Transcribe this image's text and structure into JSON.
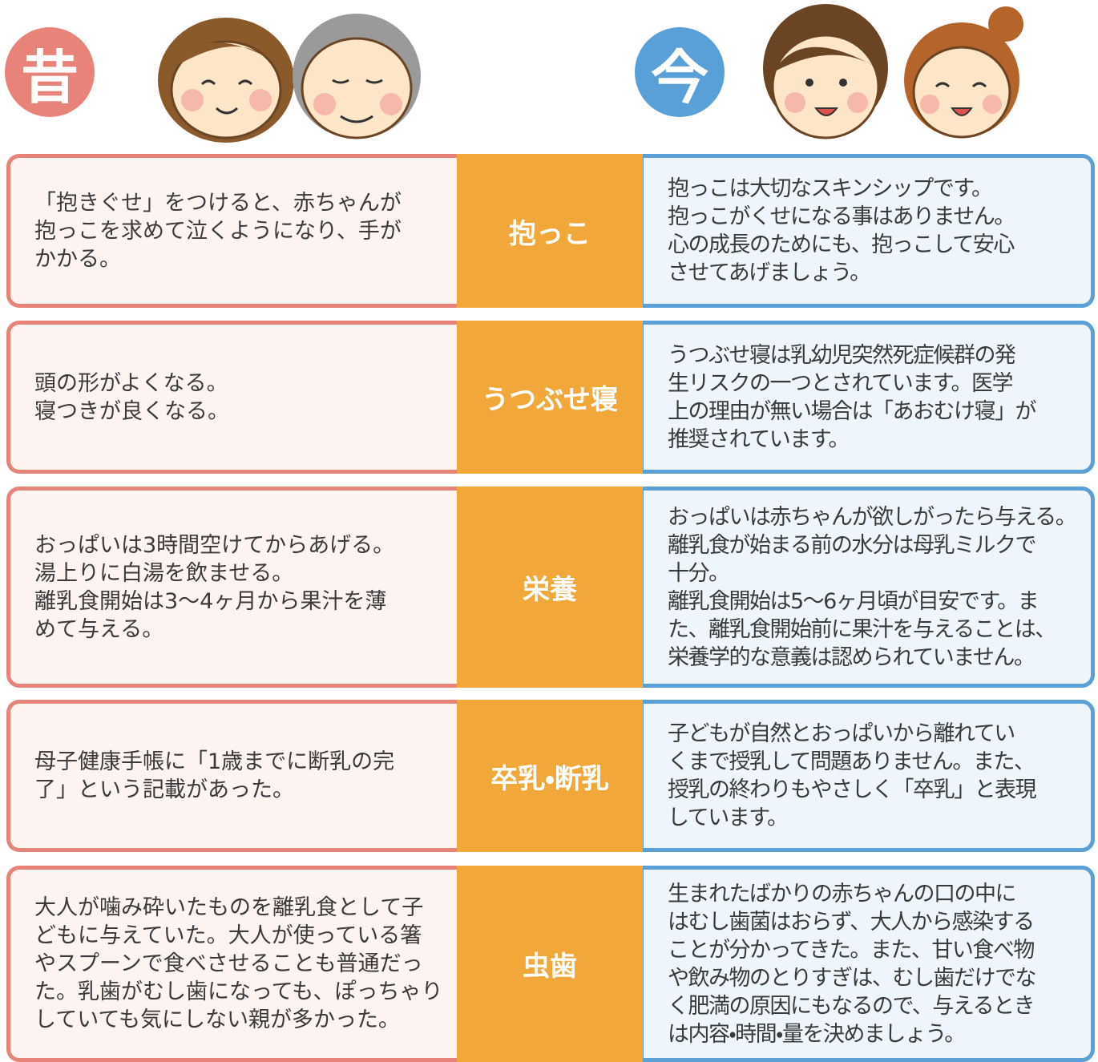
{
  "header": {
    "old_badge": "昔",
    "new_badge": "今"
  },
  "rows": [
    {
      "topic": "抱っこ",
      "old": [
        "「抱きぐせ」をつけると、赤ちゃんが",
        "抱っこを求めて泣くようになり、手が",
        "かかる。"
      ],
      "new": [
        "抱っこは大切なスキンシップです。",
        "抱っこがくせになる事はありません。",
        "心の成長のためにも、抱っこして安心",
        "させてあげましょう。"
      ]
    },
    {
      "topic": "うつぶせ寝",
      "old": [
        "頭の形がよくなる。",
        "寝つきが良くなる。"
      ],
      "new": [
        "うつぶせ寝は乳幼児突然死症候群の発",
        "生リスクの一つとされています。医学",
        "上の理由が無い場合は「あおむけ寝」が",
        "推奨されています。"
      ]
    },
    {
      "topic": "栄養",
      "old": [
        "おっぱいは3時間空けてからあげる。",
        "湯上りに白湯を飲ませる。",
        "離乳食開始は3～4ヶ月から果汁を薄",
        "めて与える。"
      ],
      "new": [
        "おっぱいは赤ちゃんが欲しがったら与える。",
        "離乳食が始まる前の水分は母乳ミルクで",
        "十分。",
        "離乳食開始は5～6ヶ月頃が目安です。ま",
        "た、離乳食開始前に果汁を与えることは、",
        "栄養学的な意義は認められていません。"
      ]
    },
    {
      "topic": "卒乳・断乳",
      "old": [
        "母子健康手帳に「1歳までに断乳の完",
        "了」という記載があった。"
      ],
      "new": [
        "子どもが自然とおっぱいから離れてい",
        "くまで授乳して問題ありません。また、",
        "授乳の終わりもやさしく「卒乳」と表現",
        "しています。"
      ]
    },
    {
      "topic": "虫歯",
      "old": [
        "大人が噛み砕いたものを離乳食として子",
        "どもに与えていた。大人が使っている箸",
        "やスプーンで食べさせることも普通だっ",
        "た。乳歯がむし歯になっても、ぽっちゃり",
        "していても気にしない親が多かった。"
      ],
      "new": [
        "生まれたばかりの赤ちゃんの口の中に",
        "はむし歯菌はおらず、大人から感染する",
        "ことが分かってきた。また、甘い食べ物",
        "や飲み物のとりすぎは、むし歯だけでな",
        "く肥満の原因にもなるので、与えるとき",
        "は内容・時間・量を決めましょう。"
      ]
    }
  ]
}
